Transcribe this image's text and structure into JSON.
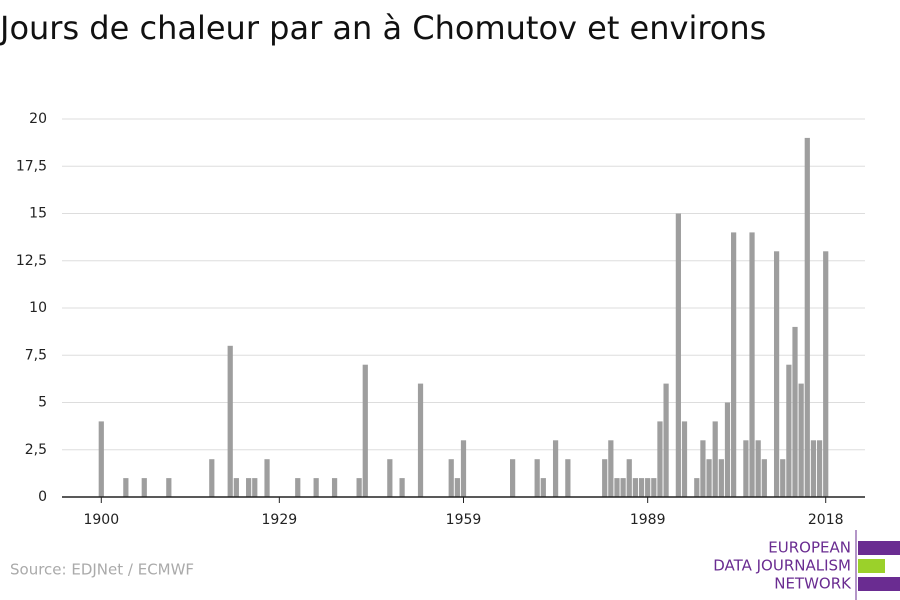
{
  "chart_data": {
    "type": "bar",
    "title": "Jours de chaleur par an à Chomutov et environs",
    "source": "Source: EDJNet / ECMWF",
    "logo": [
      "EUROPEAN",
      "DATA JOURNALISM",
      "NETWORK"
    ],
    "color": "#9e9e9e",
    "x": [
      1900,
      1904,
      1907,
      1911,
      1918,
      1921,
      1922,
      1924,
      1925,
      1927,
      1932,
      1935,
      1938,
      1942,
      1943,
      1947,
      1949,
      1952,
      1957,
      1958,
      1959,
      1967,
      1971,
      1972,
      1974,
      1976,
      1982,
      1983,
      1984,
      1985,
      1986,
      1987,
      1988,
      1989,
      1990,
      1991,
      1992,
      1994,
      1995,
      1997,
      1998,
      1999,
      2000,
      2001,
      2002,
      2003,
      2005,
      2006,
      2007,
      2008,
      2010,
      2011,
      2012,
      2013,
      2014,
      2015,
      2016,
      2017,
      2018
    ],
    "values": [
      4,
      1,
      1,
      1,
      2,
      8,
      1,
      1,
      1,
      2,
      1,
      1,
      1,
      1,
      7,
      2,
      1,
      6,
      2,
      1,
      3,
      2,
      2,
      1,
      3,
      2,
      2,
      3,
      1,
      1,
      2,
      1,
      1,
      1,
      1,
      4,
      6,
      15,
      4,
      1,
      3,
      2,
      4,
      2,
      5,
      14,
      3,
      14,
      3,
      2,
      13,
      2,
      7,
      9,
      6,
      19,
      3,
      3,
      13
    ],
    "xlim": [
      1893.6,
      2024.4
    ],
    "xticks": [
      1900,
      1929,
      1959,
      1989,
      2018
    ],
    "ylim": [
      0,
      20
    ],
    "yticks": [
      0,
      {
        "value": 2.5,
        "label": "2,5"
      },
      5,
      {
        "value": 7.5,
        "label": "7,5"
      },
      10,
      {
        "value": 12.5,
        "label": "12,5"
      },
      15,
      {
        "value": 17.5,
        "label": "17,5"
      },
      20
    ],
    "grid": true
  }
}
